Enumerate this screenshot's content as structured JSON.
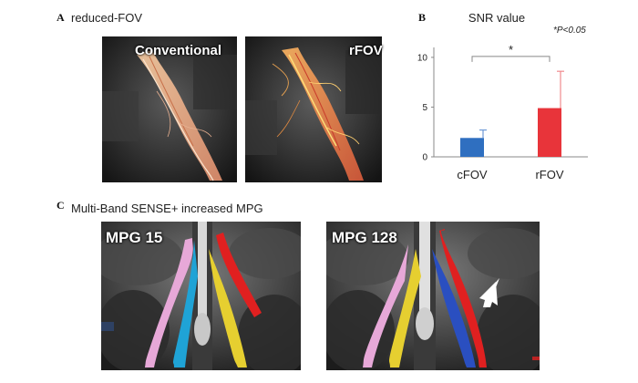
{
  "panelA": {
    "letter": "A",
    "title": "reduced-FOV",
    "images": [
      {
        "label": "Conventional"
      },
      {
        "label": "rFOV"
      }
    ]
  },
  "panelB": {
    "letter": "B",
    "significance_note": "*P<0.05",
    "significance_marker": "*"
  },
  "panelC": {
    "letter": "C",
    "title": "Multi-Band SENSE+ increased MPG",
    "images": [
      {
        "label": "MPG 15"
      },
      {
        "label": "MPG 128"
      }
    ]
  },
  "colors": {
    "bar_cfov": "#2f6fc0",
    "bar_rfov": "#e8343a",
    "error_cfov": "#6f9ad6",
    "error_rfov": "#f08a8e"
  },
  "chart_data": {
    "type": "bar",
    "title": "SNR value",
    "categories": [
      "cFOV",
      "rFOV"
    ],
    "values": [
      1.9,
      4.9
    ],
    "errors": [
      0.8,
      3.7
    ],
    "ylim": [
      0,
      11
    ],
    "yticks": [
      0,
      5,
      10
    ],
    "xlabel": "",
    "ylabel": "",
    "grid": false
  }
}
